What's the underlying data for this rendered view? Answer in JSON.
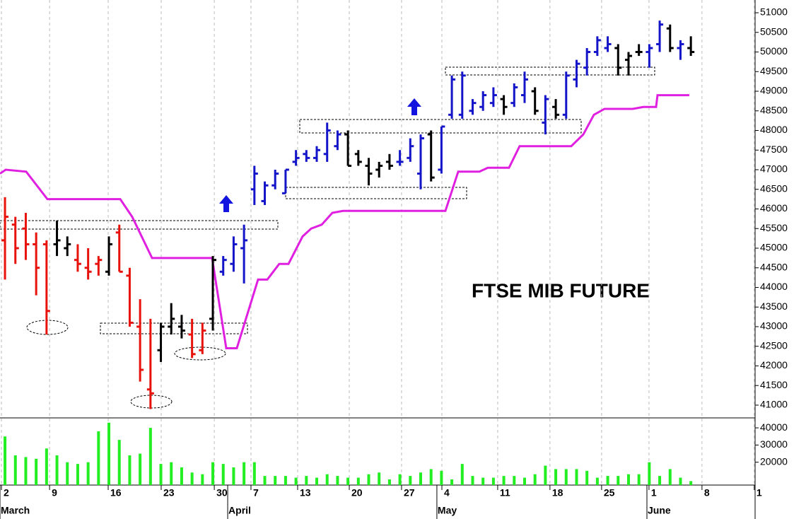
{
  "chart_data": [
    {
      "type": "ohlc",
      "title": "FTSE MIB FUTURE",
      "x": [
        0,
        1,
        2,
        3,
        4,
        5,
        6,
        7,
        8,
        9,
        10,
        11,
        12,
        13,
        14,
        15,
        16,
        17,
        18,
        19,
        20,
        21,
        22,
        23,
        24,
        25,
        26,
        27,
        28,
        29,
        30,
        31,
        32,
        33,
        34,
        35,
        36,
        37,
        38,
        39,
        40,
        41,
        42,
        43,
        44,
        45,
        46,
        47,
        48,
        49,
        50,
        51,
        52,
        53,
        54,
        55,
        56,
        57,
        58,
        59,
        60,
        61,
        62,
        63,
        64,
        65,
        66
      ],
      "open": [
        45200,
        45600,
        45500,
        45100,
        45100,
        45100,
        45000,
        44700,
        44500,
        44600,
        44400,
        45400,
        44300,
        43000,
        41400,
        42400,
        43000,
        43000,
        42800,
        42400,
        43200,
        44400,
        44600,
        45000,
        46500,
        46200,
        46600,
        46400,
        47200,
        47400,
        47300,
        47400,
        47600,
        47900,
        47400,
        47100,
        47000,
        47200,
        47200,
        47300,
        46900,
        47900,
        47000,
        48400,
        48400,
        48500,
        48600,
        48700,
        48800,
        48700,
        48900,
        49000,
        48200,
        48600,
        48400,
        49300,
        49600,
        50000,
        50100,
        50100,
        49800,
        50000,
        50000,
        50200,
        50600,
        50100,
        50100
      ],
      "high": [
        46300,
        45800,
        45900,
        45400,
        45200,
        45700,
        45300,
        45100,
        45000,
        44800,
        45300,
        45600,
        44500,
        43700,
        43200,
        43100,
        43600,
        43300,
        43200,
        43100,
        44800,
        44800,
        45300,
        45600,
        47100,
        46700,
        47000,
        47000,
        47500,
        47500,
        47600,
        48200,
        48000,
        48000,
        47500,
        47300,
        47200,
        47400,
        47500,
        47800,
        47900,
        48000,
        48100,
        49400,
        49500,
        48800,
        49000,
        49100,
        48900,
        49200,
        49500,
        49100,
        48900,
        48800,
        49500,
        49800,
        50100,
        50400,
        50400,
        50200,
        50000,
        50200,
        50200,
        50800,
        50700,
        50300,
        50400
      ],
      "low": [
        44200,
        44600,
        44700,
        43800,
        42800,
        44800,
        44800,
        44400,
        44200,
        44300,
        44300,
        44400,
        43000,
        41600,
        40900,
        42100,
        42800,
        42700,
        42200,
        42300,
        42900,
        44300,
        44400,
        44100,
        46100,
        46100,
        46500,
        46400,
        47100,
        47200,
        47200,
        47200,
        47500,
        47100,
        47100,
        46600,
        46800,
        47000,
        47100,
        47200,
        46500,
        46700,
        46900,
        48300,
        48300,
        48400,
        48500,
        48600,
        48400,
        48600,
        48700,
        48400,
        47900,
        48300,
        48300,
        49100,
        49400,
        49900,
        50000,
        49400,
        49400,
        49900,
        49600,
        50000,
        50000,
        49800,
        49900
      ],
      "close": [
        45800,
        45000,
        45100,
        44500,
        43400,
        45200,
        45100,
        44600,
        44400,
        44700,
        45100,
        44400,
        43100,
        41900,
        41300,
        43000,
        43200,
        42900,
        42300,
        42900,
        44700,
        44700,
        45100,
        45200,
        46900,
        46600,
        46900,
        47000,
        47300,
        47300,
        47500,
        48000,
        47900,
        47100,
        47200,
        46900,
        47100,
        47100,
        47200,
        47600,
        47800,
        46800,
        48100,
        49300,
        49400,
        48700,
        48900,
        48900,
        48600,
        49100,
        49300,
        48500,
        48800,
        48400,
        49400,
        49700,
        50000,
        50300,
        50200,
        49600,
        49900,
        50000,
        50100,
        50700,
        50100,
        50200,
        50000
      ],
      "colors": [
        "#e8120c",
        "#e8120c",
        "#e8120c",
        "#e8120c",
        "#e8120c",
        "#000000",
        "#000000",
        "#e8120c",
        "#e8120c",
        "#e8120c",
        "#000000",
        "#e8120c",
        "#e8120c",
        "#e8120c",
        "#e8120c",
        "#000000",
        "#000000",
        "#000000",
        "#e8120c",
        "#e8120c",
        "#000000",
        "#1414c8",
        "#1414c8",
        "#1414c8",
        "#1414c8",
        "#1414c8",
        "#1414c8",
        "#1414c8",
        "#1414c8",
        "#1414c8",
        "#1414c8",
        "#1414c8",
        "#1414c8",
        "#000000",
        "#000000",
        "#000000",
        "#000000",
        "#000000",
        "#1414c8",
        "#1414c8",
        "#1414c8",
        "#000000",
        "#1414c8",
        "#1414c8",
        "#1414c8",
        "#1414c8",
        "#1414c8",
        "#1414c8",
        "#000000",
        "#1414c8",
        "#1414c8",
        "#000000",
        "#1414c8",
        "#000000",
        "#1414c8",
        "#1414c8",
        "#1414c8",
        "#1414c8",
        "#1414c8",
        "#000000",
        "#000000",
        "#000000",
        "#1414c8",
        "#1414c8",
        "#000000",
        "#1414c8",
        "#000000"
      ],
      "stop_line": {
        "color": "#e020e0",
        "x": [
          -0.48,
          0.07,
          2.04,
          4.08,
          11.09,
          12.24,
          14.15,
          19.93,
          21.29,
          22.31,
          24.35,
          25.24,
          26.39,
          27.28,
          28.64,
          29.46,
          30.48,
          31.5,
          32.52,
          42.38,
          43.61,
          45.65,
          46.46,
          48.5,
          49.52,
          54.49,
          55.65,
          56.67,
          57.69,
          60.41,
          61.43,
          62.65,
          62.79,
          65.85
        ],
        "values": [
          46900,
          47000,
          46950,
          46250,
          46250,
          45800,
          44750,
          44750,
          42450,
          42450,
          44200,
          44200,
          44600,
          44600,
          45300,
          45500,
          45600,
          45900,
          45950,
          45950,
          46950,
          46950,
          47050,
          47050,
          47600,
          47600,
          47900,
          48400,
          48550,
          48550,
          48600,
          48600,
          48900,
          48900
        ]
      },
      "xlim": [
        -0.48,
        72.18
      ],
      "ylim": [
        40675,
        51325
      ],
      "yticks": [
        41000,
        41500,
        42000,
        42500,
        43000,
        43500,
        44000,
        44500,
        45000,
        45500,
        46000,
        46500,
        47000,
        47500,
        48000,
        48500,
        49000,
        49500,
        50000,
        50500,
        51000
      ],
      "xticks": [
        {
          "value": -0.34,
          "label": "2"
        },
        {
          "value": 4.29,
          "label": "9"
        },
        {
          "value": 9.93,
          "label": "16"
        },
        {
          "value": 15.03,
          "label": "23"
        },
        {
          "value": 20.14,
          "label": "30"
        },
        {
          "value": 23.67,
          "label": "7"
        },
        {
          "value": 28.16,
          "label": "13"
        },
        {
          "value": 33.13,
          "label": "20"
        },
        {
          "value": 38.16,
          "label": "27"
        },
        {
          "value": 42.04,
          "label": "4"
        },
        {
          "value": 47.41,
          "label": "11"
        },
        {
          "value": 52.44,
          "label": "18"
        },
        {
          "value": 57.41,
          "label": "25"
        },
        {
          "value": 61.97,
          "label": "1"
        },
        {
          "value": 67.07,
          "label": "8"
        },
        {
          "value": 72.1,
          "label": "1"
        }
      ],
      "month_ticks": [
        {
          "value": -0.48,
          "label": "March"
        },
        {
          "value": 21.43,
          "label": "April"
        },
        {
          "value": 41.56,
          "label": "May"
        },
        {
          "value": 61.77,
          "label": "June"
        }
      ],
      "grid": true
    },
    {
      "type": "bar",
      "color": "#22ee22",
      "x": [
        0,
        1,
        2,
        3,
        4,
        5,
        6,
        7,
        8,
        9,
        10,
        11,
        12,
        13,
        14,
        15,
        16,
        17,
        18,
        19,
        20,
        21,
        22,
        23,
        24,
        25,
        26,
        27,
        28,
        29,
        30,
        31,
        32,
        33,
        34,
        35,
        36,
        37,
        38,
        39,
        40,
        41,
        42,
        43,
        44,
        45,
        46,
        47,
        48,
        49,
        50,
        51,
        52,
        53,
        54,
        55,
        56,
        57,
        58,
        59,
        60,
        61,
        62,
        63,
        64,
        65,
        66
      ],
      "values": [
        35000,
        24000,
        23000,
        22000,
        28000,
        24000,
        20000,
        19000,
        20000,
        38000,
        43000,
        33000,
        24000,
        25000,
        40000,
        19000,
        20000,
        17000,
        14000,
        13000,
        20000,
        19000,
        17000,
        20000,
        20000,
        12000,
        12000,
        12000,
        11000,
        12000,
        11000,
        13000,
        12000,
        11000,
        11000,
        13000,
        14000,
        10000,
        13000,
        12000,
        14000,
        16000,
        15000,
        10000,
        19000,
        12000,
        11000,
        11000,
        12000,
        12000,
        11000,
        13000,
        18000,
        16000,
        16000,
        16000,
        15000,
        11000,
        12000,
        12000,
        13000,
        13000,
        20000,
        12000,
        16000,
        11000,
        9000
      ],
      "xlim": [
        -0.48,
        72.18
      ],
      "ylim": [
        6700,
        45800
      ],
      "yticks": [
        20000,
        30000,
        40000
      ]
    }
  ]
}
